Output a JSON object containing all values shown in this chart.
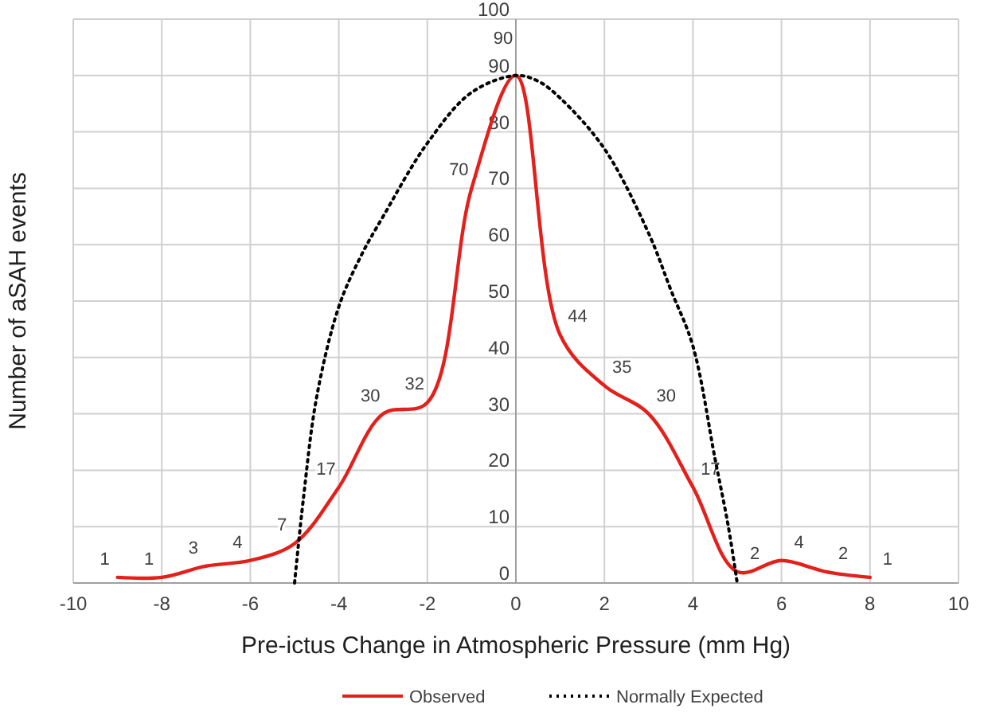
{
  "chart_data": {
    "type": "line",
    "xlabel": "Pre-ictus Change in Atmospheric Pressure (mm Hg)",
    "ylabel": "Number of aSAH events",
    "xlim": [
      -10,
      10
    ],
    "xticks": [
      -10,
      -8,
      -6,
      -4,
      -2,
      0,
      2,
      4,
      6,
      8,
      10
    ],
    "ylim": [
      0,
      100
    ],
    "yticks": [
      0,
      10,
      20,
      30,
      40,
      50,
      60,
      70,
      80,
      90,
      100
    ],
    "grid": true,
    "legend": "bottom",
    "marker": "none",
    "series": [
      {
        "name": "Observed",
        "color": "#e3201b",
        "line_style": "solid",
        "data_labels": true,
        "x": [
          -9,
          -8,
          -7,
          -6,
          -5,
          -4,
          -3,
          -2,
          -1,
          0,
          1,
          2,
          3,
          4,
          5,
          6,
          7,
          8
        ],
        "values": [
          1,
          1,
          3,
          4,
          7,
          17,
          30,
          32,
          70,
          90,
          44,
          35,
          30,
          17,
          2,
          4,
          2,
          1
        ]
      },
      {
        "name": "Normally Expected",
        "color": "#000000",
        "line_style": "dotted",
        "x": [
          -5,
          -4.8,
          -4.5,
          -4,
          -3.5,
          -3,
          -2,
          -1,
          0,
          0.5,
          1,
          2,
          3,
          3.5,
          4,
          4.5,
          4.8,
          5
        ],
        "values": [
          0,
          15,
          33,
          49,
          58,
          65,
          78,
          87,
          90,
          89,
          86,
          77,
          62,
          52,
          42,
          22,
          10,
          0
        ]
      }
    ]
  }
}
